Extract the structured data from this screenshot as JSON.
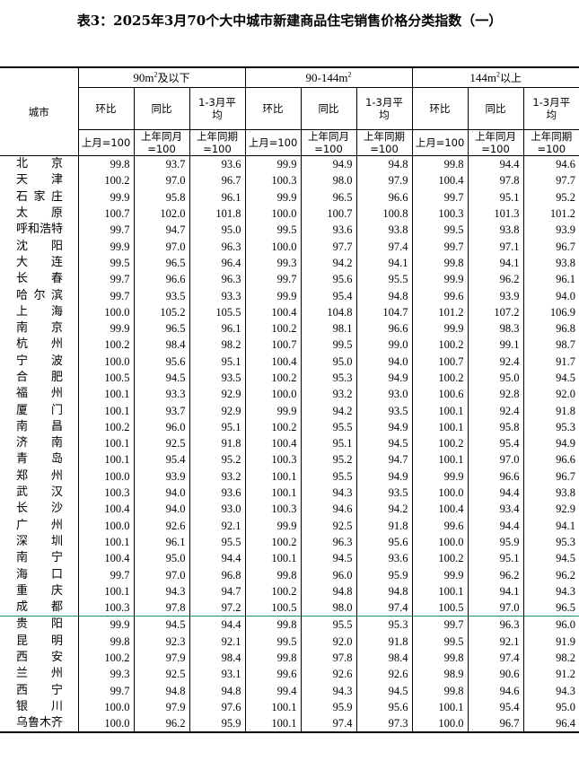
{
  "title": "表3：2025年3月70个大中城市新建商品住宅销售价格分类指数（一）",
  "header": {
    "city": "城市",
    "groups": [
      {
        "base": "90m",
        "sup": "2",
        "suffix": "及以下"
      },
      {
        "base": "90-144m",
        "sup": "2",
        "suffix": ""
      },
      {
        "base": "144m",
        "sup": "2",
        "suffix": "以上"
      }
    ],
    "labels": [
      "环比",
      "同比",
      "1-3月平均"
    ],
    "units": [
      "上月=100",
      "上年同月=100",
      "上年同期=100"
    ]
  },
  "separator_color": "#1f8a6a",
  "rows": [
    {
      "city": "北京",
      "v": [
        "99.8",
        "93.7",
        "93.6",
        "99.9",
        "94.9",
        "94.8",
        "99.8",
        "94.4",
        "94.6"
      ]
    },
    {
      "city": "天津",
      "v": [
        "100.2",
        "97.0",
        "96.7",
        "100.3",
        "98.0",
        "97.9",
        "100.4",
        "97.8",
        "97.7"
      ]
    },
    {
      "city": "石家庄",
      "v": [
        "99.9",
        "95.8",
        "96.1",
        "99.9",
        "96.5",
        "96.6",
        "99.7",
        "95.1",
        "95.2"
      ]
    },
    {
      "city": "太原",
      "v": [
        "100.7",
        "102.0",
        "101.8",
        "100.0",
        "100.7",
        "100.8",
        "100.3",
        "101.3",
        "101.2"
      ]
    },
    {
      "city": "呼和浩特",
      "v": [
        "99.7",
        "94.7",
        "95.0",
        "99.5",
        "93.6",
        "93.8",
        "99.5",
        "93.8",
        "93.9"
      ]
    },
    {
      "city": "沈阳",
      "v": [
        "99.9",
        "97.0",
        "96.3",
        "100.0",
        "97.7",
        "97.4",
        "99.7",
        "97.1",
        "96.7"
      ]
    },
    {
      "city": "大连",
      "v": [
        "99.5",
        "96.5",
        "96.4",
        "99.3",
        "94.2",
        "94.1",
        "99.8",
        "94.1",
        "93.8"
      ]
    },
    {
      "city": "长春",
      "v": [
        "99.7",
        "96.6",
        "96.3",
        "99.7",
        "95.6",
        "95.5",
        "99.9",
        "96.2",
        "96.1"
      ]
    },
    {
      "city": "哈尔滨",
      "v": [
        "99.7",
        "93.5",
        "93.3",
        "99.9",
        "95.4",
        "94.8",
        "99.6",
        "93.9",
        "94.0"
      ]
    },
    {
      "city": "上海",
      "v": [
        "100.0",
        "105.2",
        "105.5",
        "100.4",
        "104.8",
        "104.7",
        "101.2",
        "107.2",
        "106.9"
      ]
    },
    {
      "city": "南京",
      "v": [
        "99.9",
        "96.5",
        "96.1",
        "100.2",
        "98.1",
        "96.6",
        "99.9",
        "98.3",
        "96.8"
      ]
    },
    {
      "city": "杭州",
      "v": [
        "100.2",
        "98.4",
        "98.2",
        "100.7",
        "99.5",
        "99.0",
        "100.2",
        "99.1",
        "98.7"
      ]
    },
    {
      "city": "宁波",
      "v": [
        "100.0",
        "95.6",
        "95.1",
        "100.4",
        "95.0",
        "94.0",
        "100.7",
        "92.4",
        "91.7"
      ]
    },
    {
      "city": "合肥",
      "v": [
        "100.5",
        "94.5",
        "93.5",
        "100.2",
        "95.3",
        "94.9",
        "100.2",
        "95.0",
        "94.5"
      ]
    },
    {
      "city": "福州",
      "v": [
        "100.1",
        "93.3",
        "92.9",
        "100.0",
        "93.2",
        "93.0",
        "100.6",
        "92.8",
        "92.0"
      ]
    },
    {
      "city": "厦门",
      "v": [
        "100.1",
        "93.7",
        "92.9",
        "99.9",
        "94.2",
        "93.5",
        "100.1",
        "92.4",
        "91.8"
      ]
    },
    {
      "city": "南昌",
      "v": [
        "100.2",
        "96.0",
        "95.1",
        "100.2",
        "95.5",
        "94.9",
        "100.1",
        "95.8",
        "95.3"
      ]
    },
    {
      "city": "济南",
      "v": [
        "100.1",
        "92.5",
        "91.8",
        "100.4",
        "95.1",
        "94.5",
        "100.2",
        "95.4",
        "94.9"
      ]
    },
    {
      "city": "青岛",
      "v": [
        "100.1",
        "95.4",
        "95.2",
        "100.3",
        "95.2",
        "94.7",
        "100.1",
        "97.0",
        "96.6"
      ]
    },
    {
      "city": "郑州",
      "v": [
        "100.0",
        "93.9",
        "93.2",
        "100.1",
        "95.5",
        "94.9",
        "99.9",
        "96.6",
        "96.7"
      ]
    },
    {
      "city": "武汉",
      "v": [
        "100.3",
        "94.0",
        "93.6",
        "100.1",
        "94.3",
        "93.5",
        "100.0",
        "94.4",
        "93.8"
      ]
    },
    {
      "city": "长沙",
      "v": [
        "100.4",
        "94.0",
        "93.0",
        "100.3",
        "94.6",
        "94.2",
        "100.4",
        "93.4",
        "92.9"
      ]
    },
    {
      "city": "广州",
      "v": [
        "100.0",
        "92.6",
        "92.1",
        "99.9",
        "92.5",
        "91.8",
        "99.6",
        "94.4",
        "94.1"
      ]
    },
    {
      "city": "深圳",
      "v": [
        "100.1",
        "96.1",
        "95.5",
        "100.2",
        "96.3",
        "95.6",
        "100.0",
        "95.9",
        "95.3"
      ]
    },
    {
      "city": "南宁",
      "v": [
        "100.4",
        "95.0",
        "94.4",
        "100.1",
        "94.5",
        "93.6",
        "100.2",
        "95.1",
        "94.5"
      ]
    },
    {
      "city": "海口",
      "v": [
        "99.7",
        "97.0",
        "96.8",
        "99.8",
        "96.0",
        "95.9",
        "99.9",
        "96.2",
        "96.2"
      ]
    },
    {
      "city": "重庆",
      "v": [
        "100.1",
        "94.3",
        "94.7",
        "100.2",
        "94.8",
        "94.8",
        "100.1",
        "94.1",
        "94.3"
      ]
    },
    {
      "city": "成都",
      "v": [
        "100.3",
        "97.8",
        "97.2",
        "100.5",
        "98.0",
        "97.4",
        "100.5",
        "97.0",
        "96.5"
      ]
    },
    {
      "city": "贵阳",
      "v": [
        "99.9",
        "94.5",
        "94.4",
        "99.8",
        "95.5",
        "95.3",
        "99.7",
        "96.3",
        "96.0"
      ]
    },
    {
      "city": "昆明",
      "v": [
        "99.8",
        "92.3",
        "92.1",
        "99.5",
        "92.0",
        "91.8",
        "99.5",
        "92.1",
        "91.9"
      ]
    },
    {
      "city": "西安",
      "v": [
        "100.2",
        "97.9",
        "98.4",
        "99.8",
        "97.8",
        "98.4",
        "99.8",
        "97.4",
        "98.2"
      ]
    },
    {
      "city": "兰州",
      "v": [
        "99.3",
        "92.5",
        "93.1",
        "99.6",
        "92.6",
        "92.6",
        "98.9",
        "90.6",
        "91.2"
      ]
    },
    {
      "city": "西宁",
      "v": [
        "99.7",
        "94.8",
        "94.8",
        "99.4",
        "94.3",
        "94.5",
        "99.8",
        "94.6",
        "94.3"
      ]
    },
    {
      "city": "银川",
      "v": [
        "100.0",
        "97.9",
        "97.6",
        "100.1",
        "95.9",
        "95.6",
        "100.1",
        "95.4",
        "95.0"
      ]
    },
    {
      "city": "乌鲁木齐",
      "v": [
        "100.0",
        "96.2",
        "95.9",
        "100.1",
        "97.4",
        "97.3",
        "100.0",
        "96.7",
        "96.4"
      ]
    }
  ]
}
